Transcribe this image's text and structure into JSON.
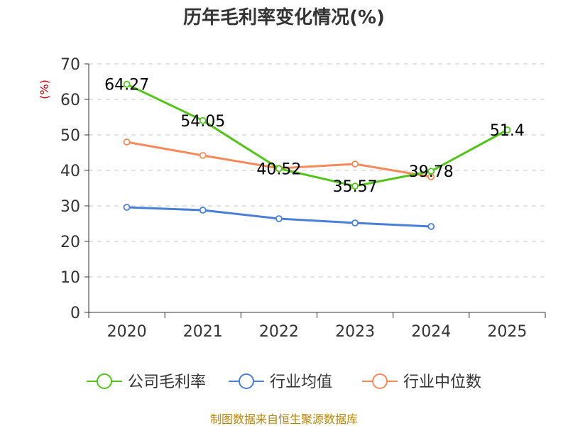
{
  "chart_data": {
    "type": "line",
    "title": "历年毛利率变化情况(%)",
    "ylabel": "(%)",
    "xlabel": "",
    "categories": [
      "2020",
      "2021",
      "2022",
      "2023",
      "2024",
      "2025"
    ],
    "ylim": [
      0,
      70
    ],
    "yticks": [
      0,
      10,
      20,
      30,
      40,
      50,
      60,
      70
    ],
    "grid": true,
    "legend_position": "bottom",
    "series": [
      {
        "name": "公司毛利率",
        "color": "#52c41a",
        "values": [
          64.27,
          54.05,
          40.52,
          35.57,
          39.78,
          51.4
        ],
        "labels": [
          "64.27",
          "54.05",
          "40.52",
          "35.57",
          "39.78",
          "51.4"
        ]
      },
      {
        "name": "行业均值",
        "color": "#4a7fd8",
        "values": [
          29.6,
          28.8,
          26.4,
          25.2,
          24.2,
          null
        ]
      },
      {
        "name": "行业中位数",
        "color": "#f58b5b",
        "values": [
          48.0,
          44.2,
          40.6,
          41.8,
          38.2,
          null
        ]
      }
    ],
    "source": "制图数据来自恒生聚源数据库"
  }
}
